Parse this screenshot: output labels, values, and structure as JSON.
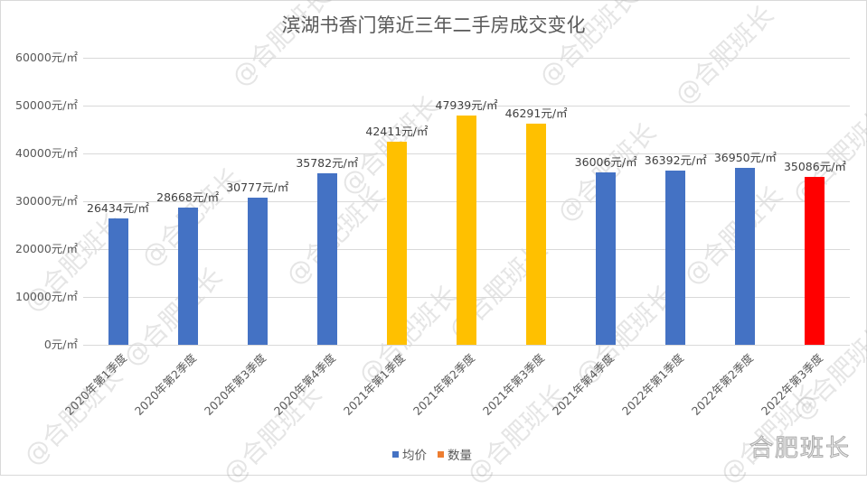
{
  "title": "滨湖书香门第近三年二手房成交变化",
  "y_axis": {
    "ticks": [
      "60000元/㎡",
      "50000元/㎡",
      "40000元/㎡",
      "30000元/㎡",
      "20000元/㎡",
      "10000元/㎡",
      "0元/㎡"
    ]
  },
  "legend": [
    {
      "label": "均价",
      "color": "#4472c4"
    },
    {
      "label": "数量",
      "color": "#ed7d31"
    }
  ],
  "watermark": "@合肥班长",
  "brand": "合肥班长",
  "bars": [
    {
      "category": "2020年第1季度",
      "value": 26434,
      "label": "26434元/㎡",
      "color": "#4472c4"
    },
    {
      "category": "2020年第2季度",
      "value": 28668,
      "label": "28668元/㎡",
      "color": "#4472c4"
    },
    {
      "category": "2020年第3季度",
      "value": 30777,
      "label": "30777元/㎡",
      "color": "#4472c4"
    },
    {
      "category": "2020年第4季度",
      "value": 35782,
      "label": "35782元/㎡",
      "color": "#4472c4"
    },
    {
      "category": "2021年第1季度",
      "value": 42411,
      "label": "42411元/㎡",
      "color": "#ffc000"
    },
    {
      "category": "2021年第2季度",
      "value": 47939,
      "label": "47939元/㎡",
      "color": "#ffc000"
    },
    {
      "category": "2021年第3季度",
      "value": 46291,
      "label": "46291元/㎡",
      "color": "#ffc000"
    },
    {
      "category": "2021年第4季度",
      "value": 36006,
      "label": "36006元/㎡",
      "color": "#4472c4"
    },
    {
      "category": "2022年第1季度",
      "value": 36392,
      "label": "36392元/㎡",
      "color": "#4472c4"
    },
    {
      "category": "2022年第2季度",
      "value": 36950,
      "label": "36950元/㎡",
      "color": "#4472c4"
    },
    {
      "category": "2022年第3季度",
      "value": 35086,
      "label": "35086元/㎡",
      "color": "#ff0000"
    }
  ],
  "chart_data": {
    "type": "bar",
    "title": "滨湖书香门第近三年二手房成交变化",
    "categories": [
      "2020年第1季度",
      "2020年第2季度",
      "2020年第3季度",
      "2020年第4季度",
      "2021年第1季度",
      "2021年第2季度",
      "2021年第3季度",
      "2021年第4季度",
      "2022年第1季度",
      "2022年第2季度",
      "2022年第3季度"
    ],
    "series": [
      {
        "name": "均价",
        "values": [
          26434,
          28668,
          30777,
          35782,
          42411,
          47939,
          46291,
          36006,
          36392,
          36950,
          35086
        ]
      },
      {
        "name": "数量",
        "values": []
      }
    ],
    "data_labels": [
      "26434元/㎡",
      "28668元/㎡",
      "30777元/㎡",
      "35782元/㎡",
      "42411元/㎡",
      "47939元/㎡",
      "46291元/㎡",
      "36006元/㎡",
      "36392元/㎡",
      "36950元/㎡",
      "35086元/㎡"
    ],
    "bar_colors": [
      "#4472c4",
      "#4472c4",
      "#4472c4",
      "#4472c4",
      "#ffc000",
      "#ffc000",
      "#ffc000",
      "#4472c4",
      "#4472c4",
      "#4472c4",
      "#ff0000"
    ],
    "xlabel": "",
    "ylabel": "",
    "ylim": [
      0,
      60000
    ],
    "y_ticks": [
      0,
      10000,
      20000,
      30000,
      40000,
      50000,
      60000
    ],
    "y_tick_format": "元/㎡",
    "grid": true,
    "legend_position": "bottom"
  }
}
